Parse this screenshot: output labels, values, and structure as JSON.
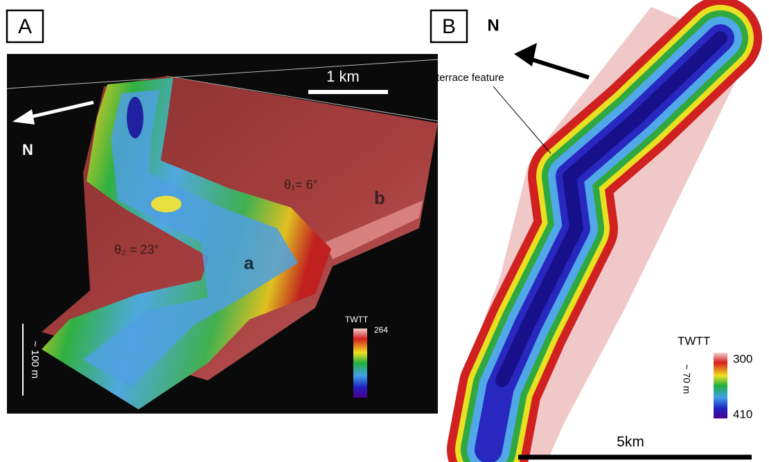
{
  "panels": [
    {
      "label": "A",
      "north": "N",
      "scale_bar": "1 km",
      "vertical_scale": "~ 100 m",
      "annotations": [
        "θ₁= 6°",
        "b",
        "θ₂ = 23°",
        "a"
      ],
      "colorbar": {
        "title": "TWTT",
        "max": "264"
      }
    },
    {
      "label": "B",
      "north": "N",
      "annotation": "terrace feature",
      "vertical_scale": "~ 70 m",
      "scale_bar": "5km",
      "colorbar": {
        "title": "TWTT",
        "max": "300",
        "min": "410"
      }
    }
  ]
}
